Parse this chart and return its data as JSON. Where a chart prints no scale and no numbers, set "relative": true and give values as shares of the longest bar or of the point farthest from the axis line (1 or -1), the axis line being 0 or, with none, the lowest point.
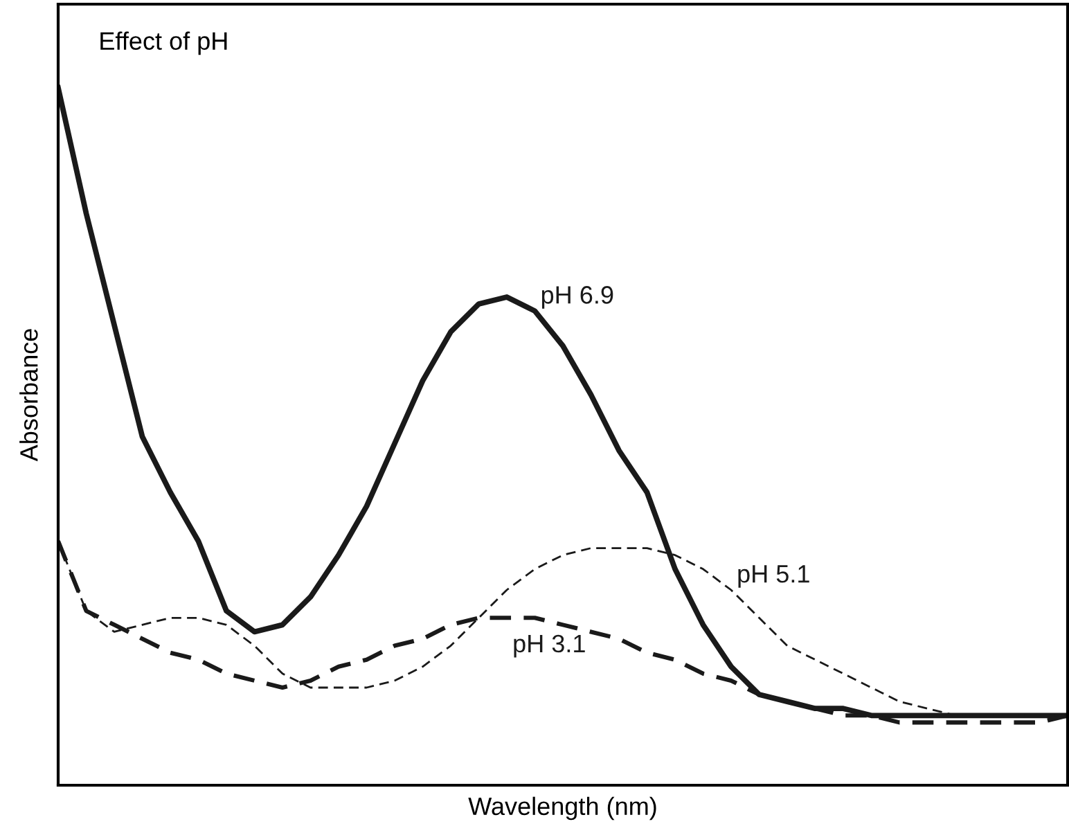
{
  "chart_data": {
    "type": "line",
    "relative": true,
    "xlabel": "Wavelength (nm)",
    "ylabel": "Absorbance",
    "annotations": [
      "Effect of pH"
    ],
    "categories": [
      null,
      null,
      null,
      null,
      null,
      null,
      null,
      null,
      null,
      null,
      null,
      null,
      null,
      null,
      null,
      null,
      null,
      null,
      null,
      null,
      null,
      null,
      null,
      null,
      null,
      null,
      null,
      null,
      null,
      null,
      null,
      null,
      null,
      null,
      null,
      null,
      null
    ],
    "series": [
      {
        "name": "pH 6.9",
        "color": "#1a1a1a",
        "line_style": "solid",
        "values": [
          1.0,
          0.82,
          0.66,
          0.5,
          0.42,
          0.35,
          0.25,
          0.22,
          0.23,
          0.27,
          0.33,
          0.4,
          0.49,
          0.58,
          0.65,
          0.69,
          0.7,
          0.68,
          0.63,
          0.56,
          0.48,
          0.42,
          0.31,
          0.23,
          0.17,
          0.13,
          0.12,
          0.11,
          0.11,
          0.1,
          0.1,
          0.1,
          0.1,
          0.1,
          0.1,
          0.1,
          0.1
        ]
      },
      {
        "name": "pH 5.1",
        "color": "#1a1a1a",
        "line_style": "dashed",
        "values": [
          0.35,
          0.25,
          0.22,
          0.23,
          0.24,
          0.24,
          0.23,
          0.2,
          0.16,
          0.14,
          0.14,
          0.14,
          0.15,
          0.17,
          0.2,
          0.24,
          0.28,
          0.31,
          0.33,
          0.34,
          0.34,
          0.34,
          0.33,
          0.31,
          0.28,
          0.24,
          0.2,
          0.18,
          0.16,
          0.14,
          0.12,
          0.11,
          0.1,
          0.1,
          0.1,
          0.1,
          0.1
        ]
      },
      {
        "name": "pH 3.1",
        "color": "#1a1a1a",
        "line_style": "dashed",
        "values": [
          0.35,
          0.25,
          0.23,
          0.21,
          0.19,
          0.18,
          0.16,
          0.15,
          0.14,
          0.15,
          0.17,
          0.18,
          0.2,
          0.21,
          0.23,
          0.24,
          0.24,
          0.24,
          0.23,
          0.22,
          0.21,
          0.19,
          0.18,
          0.16,
          0.15,
          0.13,
          0.12,
          0.11,
          0.1,
          0.1,
          0.09,
          0.09,
          0.09,
          0.09,
          0.09,
          0.09,
          0.1
        ]
      }
    ]
  }
}
